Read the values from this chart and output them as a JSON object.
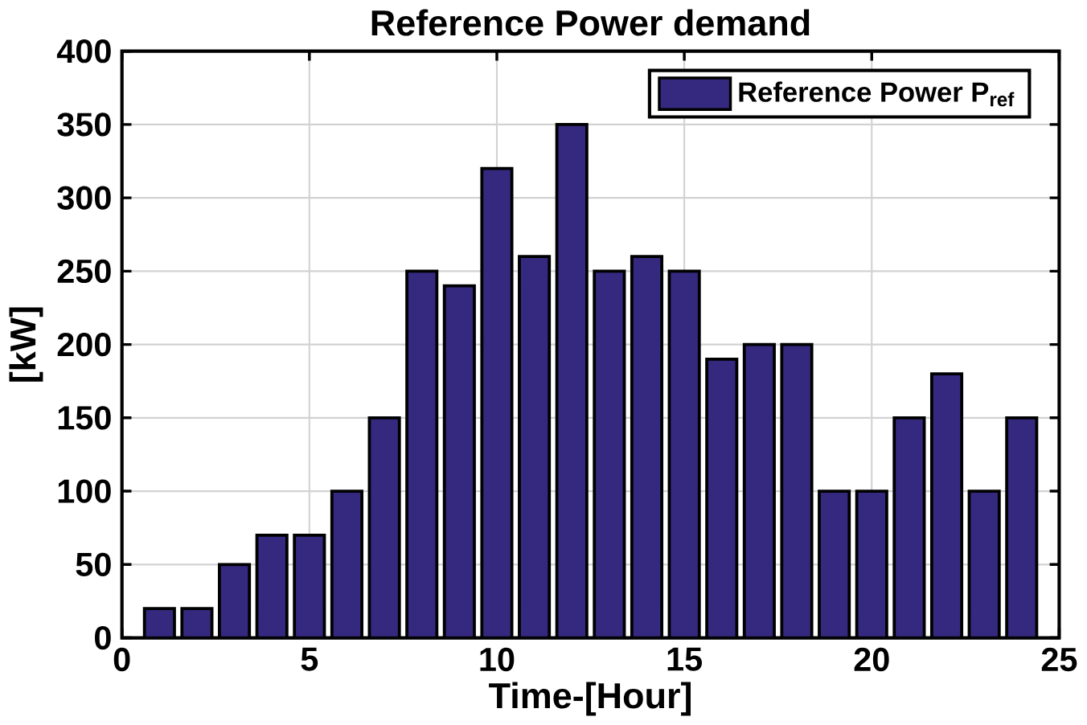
{
  "chart_data": {
    "type": "bar",
    "title": "Reference Power demand",
    "xlabel": "Time-[Hour]",
    "ylabel": "[kW]",
    "x": [
      1,
      2,
      3,
      4,
      5,
      6,
      7,
      8,
      9,
      10,
      11,
      12,
      13,
      14,
      15,
      16,
      17,
      18,
      19,
      20,
      21,
      22,
      23,
      24
    ],
    "series": [
      {
        "name": "Reference Power P$_{ref}$",
        "color": "#35297f",
        "values": [
          20,
          20,
          50,
          70,
          70,
          100,
          150,
          250,
          240,
          320,
          260,
          350,
          250,
          260,
          250,
          190,
          200,
          200,
          100,
          100,
          150,
          180,
          100,
          150
        ]
      }
    ],
    "xlim": [
      0,
      25
    ],
    "xticks": [
      0,
      5,
      10,
      15,
      20,
      25
    ],
    "ylim": [
      0,
      400
    ],
    "yticks": [
      0,
      50,
      100,
      150,
      200,
      250,
      300,
      350,
      400
    ],
    "grid": true,
    "legend": "top right"
  }
}
